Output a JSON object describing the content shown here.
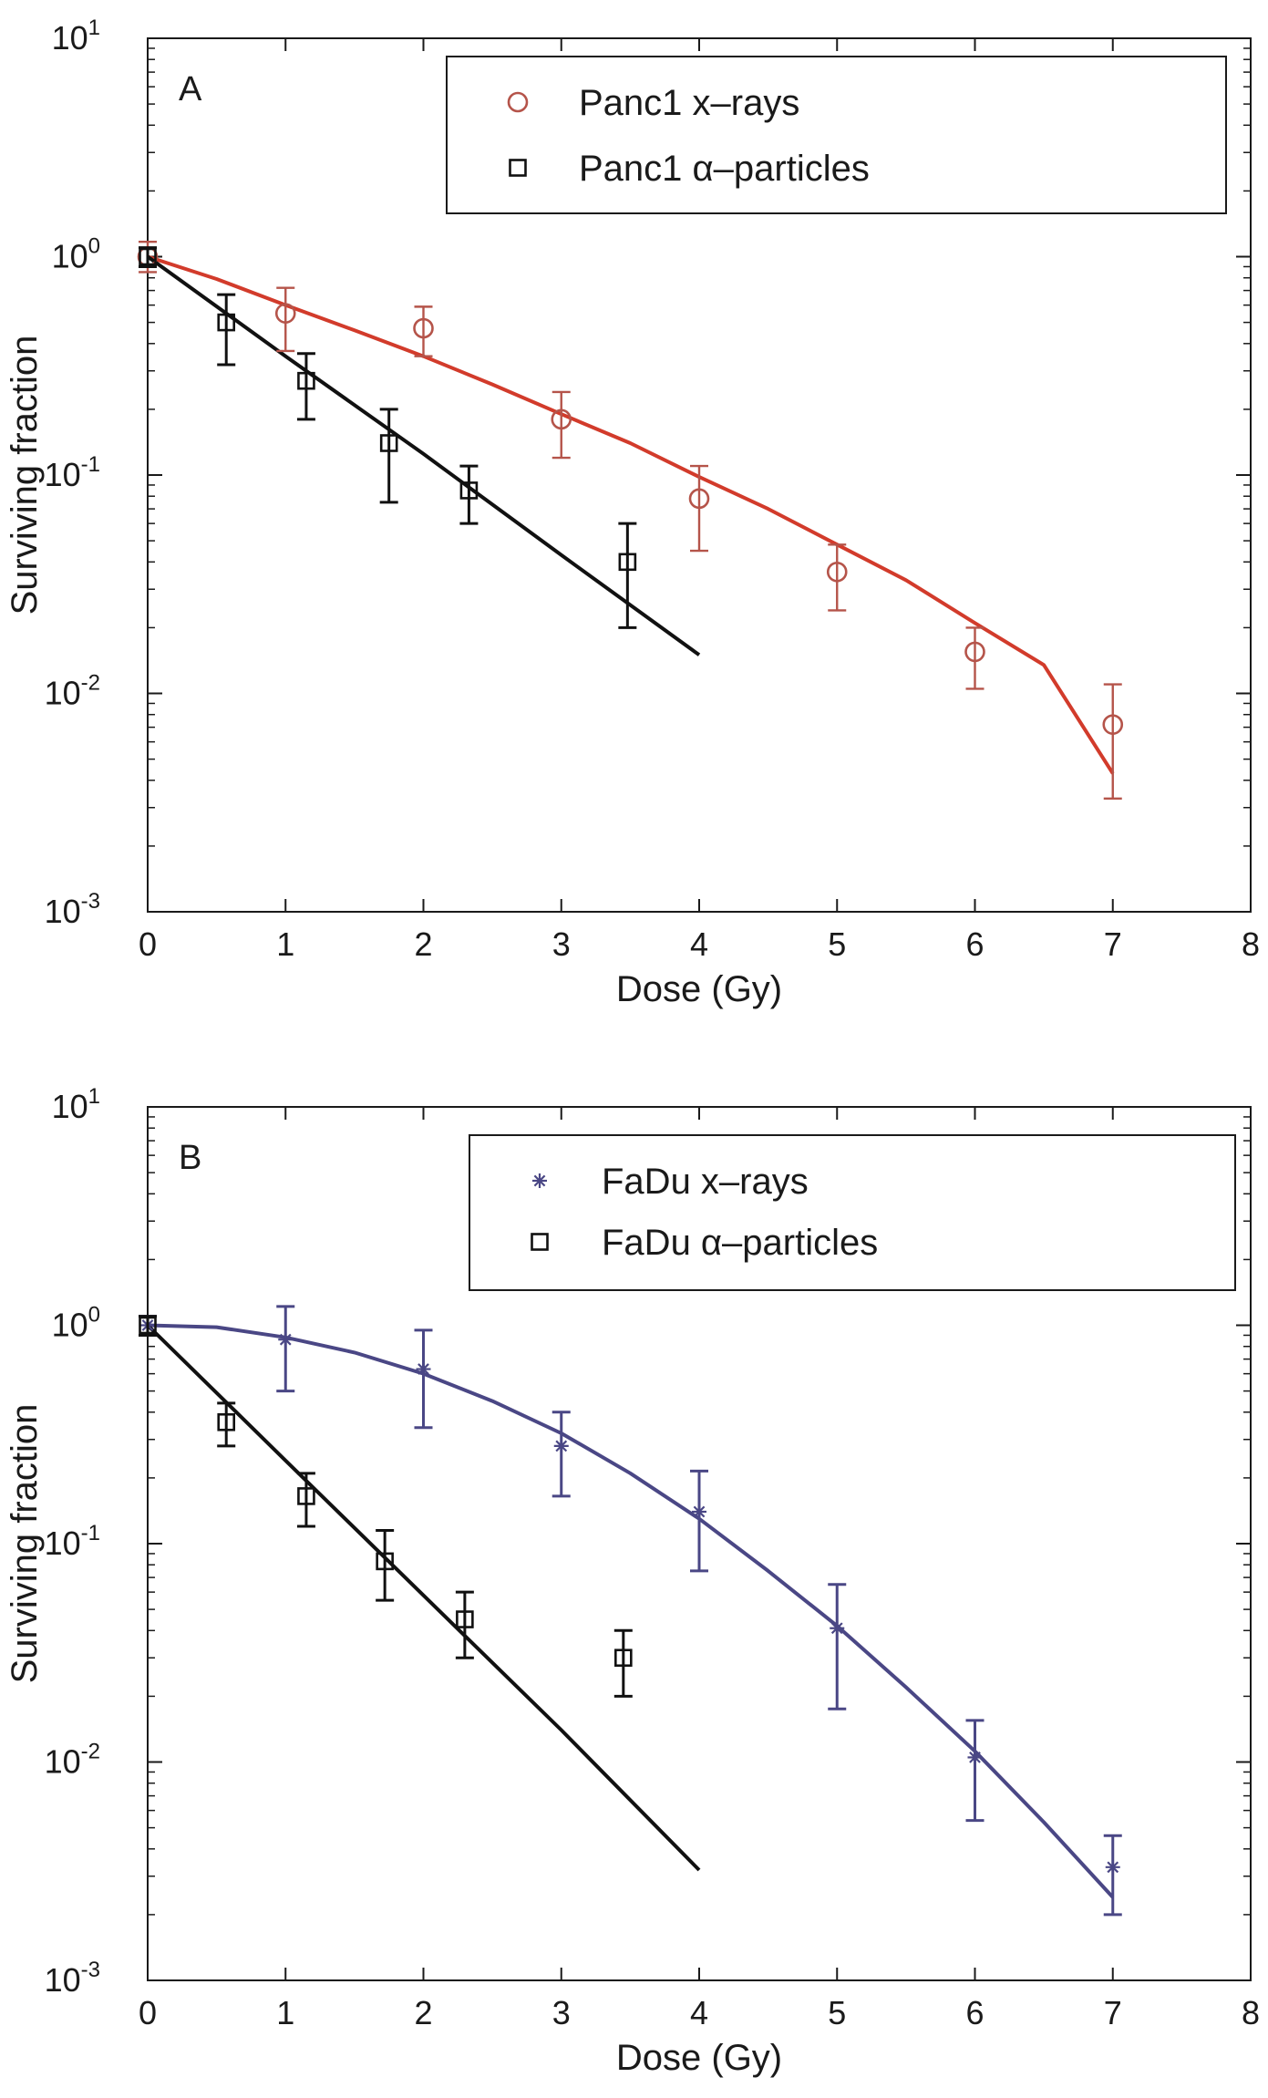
{
  "chart_data": [
    {
      "type": "scatter",
      "panel_label": "A",
      "xlabel": "Dose (Gy)",
      "ylabel": "Surviving fraction",
      "xlim": [
        0,
        8
      ],
      "ylim": [
        0.001,
        10
      ],
      "yscale": "log",
      "x_ticks": [
        "0",
        "1",
        "2",
        "3",
        "4",
        "5",
        "6",
        "7",
        "8"
      ],
      "y_ticks": [
        {
          "base": "10",
          "exp": "1",
          "value": 10
        },
        {
          "base": "10",
          "exp": "0",
          "value": 1
        },
        {
          "base": "10",
          "exp": "-1",
          "value": 0.1
        },
        {
          "base": "10",
          "exp": "-2",
          "value": 0.01
        },
        {
          "base": "10",
          "exp": "-3",
          "value": 0.001
        }
      ],
      "grid": false,
      "legend_position": "top-right",
      "series": [
        {
          "name": "Panc1 x–rays",
          "marker": "circle",
          "color": "#b5544a",
          "points": [
            {
              "x": 0,
              "y": 1.0,
              "lo": 0.85,
              "hi": 1.17
            },
            {
              "x": 1,
              "y": 0.55,
              "lo": 0.37,
              "hi": 0.72
            },
            {
              "x": 2,
              "y": 0.47,
              "lo": 0.35,
              "hi": 0.59
            },
            {
              "x": 3,
              "y": 0.18,
              "lo": 0.12,
              "hi": 0.24
            },
            {
              "x": 4,
              "y": 0.078,
              "lo": 0.045,
              "hi": 0.11
            },
            {
              "x": 5,
              "y": 0.036,
              "lo": 0.024,
              "hi": 0.048
            },
            {
              "x": 6,
              "y": 0.0155,
              "lo": 0.0105,
              "hi": 0.02
            },
            {
              "x": 7,
              "y": 0.0072,
              "lo": 0.0033,
              "hi": 0.011
            }
          ]
        },
        {
          "name": "Panc1 α–particles",
          "marker": "square",
          "color": "#111111",
          "points": [
            {
              "x": 0,
              "y": 1.0,
              "lo": 0.9,
              "hi": 1.1
            },
            {
              "x": 0.57,
              "y": 0.5,
              "lo": 0.32,
              "hi": 0.67
            },
            {
              "x": 1.15,
              "y": 0.27,
              "lo": 0.18,
              "hi": 0.36
            },
            {
              "x": 1.75,
              "y": 0.14,
              "lo": 0.075,
              "hi": 0.2
            },
            {
              "x": 2.33,
              "y": 0.085,
              "lo": 0.06,
              "hi": 0.11
            },
            {
              "x": 3.48,
              "y": 0.04,
              "lo": 0.02,
              "hi": 0.06
            }
          ]
        }
      ],
      "fits": [
        {
          "color": "#d23b2b",
          "points": [
            [
              0,
              1.0
            ],
            [
              0.5,
              0.79
            ],
            [
              1,
              0.6
            ],
            [
              1.5,
              0.46
            ],
            [
              2,
              0.35
            ],
            [
              2.5,
              0.26
            ],
            [
              3,
              0.19
            ],
            [
              3.5,
              0.14
            ],
            [
              4,
              0.098
            ],
            [
              4.5,
              0.07
            ],
            [
              5,
              0.048
            ],
            [
              5.5,
              0.033
            ],
            [
              6,
              0.021
            ],
            [
              6.5,
              0.0135
            ],
            [
              7,
              0.0043
            ]
          ]
        },
        {
          "color": "#111111",
          "points": [
            [
              0,
              1.0
            ],
            [
              1,
              0.35
            ],
            [
              2,
              0.125
            ],
            [
              3,
              0.043
            ],
            [
              4,
              0.015
            ]
          ]
        }
      ]
    },
    {
      "type": "scatter",
      "panel_label": "B",
      "xlabel": "Dose (Gy)",
      "ylabel": "Surviving fraction",
      "xlim": [
        0,
        8
      ],
      "ylim": [
        0.001,
        10
      ],
      "yscale": "log",
      "x_ticks": [
        "0",
        "1",
        "2",
        "3",
        "4",
        "5",
        "6",
        "7",
        "8"
      ],
      "y_ticks": [
        {
          "base": "10",
          "exp": "1",
          "value": 10
        },
        {
          "base": "10",
          "exp": "0",
          "value": 1
        },
        {
          "base": "10",
          "exp": "-1",
          "value": 0.1
        },
        {
          "base": "10",
          "exp": "-2",
          "value": 0.01
        },
        {
          "base": "10",
          "exp": "-3",
          "value": 0.001
        }
      ],
      "grid": false,
      "legend_position": "top-right",
      "series": [
        {
          "name": "FaDu x–rays",
          "marker": "asterisk",
          "color": "#4a4785",
          "points": [
            {
              "x": 0,
              "y": 1.0,
              "lo": 0.9,
              "hi": 1.1
            },
            {
              "x": 1,
              "y": 0.86,
              "lo": 0.5,
              "hi": 1.22
            },
            {
              "x": 2,
              "y": 0.63,
              "lo": 0.34,
              "hi": 0.95
            },
            {
              "x": 3,
              "y": 0.28,
              "lo": 0.165,
              "hi": 0.4
            },
            {
              "x": 4,
              "y": 0.14,
              "lo": 0.075,
              "hi": 0.215
            },
            {
              "x": 5,
              "y": 0.041,
              "lo": 0.0175,
              "hi": 0.065
            },
            {
              "x": 6,
              "y": 0.0105,
              "lo": 0.0054,
              "hi": 0.0155
            },
            {
              "x": 7,
              "y": 0.0033,
              "lo": 0.002,
              "hi": 0.0046
            }
          ]
        },
        {
          "name": "FaDu α–particles",
          "marker": "square",
          "color": "#111111",
          "points": [
            {
              "x": 0,
              "y": 1.0,
              "lo": 0.9,
              "hi": 1.1
            },
            {
              "x": 0.57,
              "y": 0.36,
              "lo": 0.28,
              "hi": 0.44
            },
            {
              "x": 1.15,
              "y": 0.165,
              "lo": 0.12,
              "hi": 0.21
            },
            {
              "x": 1.72,
              "y": 0.083,
              "lo": 0.055,
              "hi": 0.115
            },
            {
              "x": 2.3,
              "y": 0.045,
              "lo": 0.03,
              "hi": 0.06
            },
            {
              "x": 3.45,
              "y": 0.03,
              "lo": 0.02,
              "hi": 0.04
            }
          ]
        }
      ],
      "fits": [
        {
          "color": "#4a4785",
          "points": [
            [
              0,
              1.0
            ],
            [
              0.5,
              0.98
            ],
            [
              1,
              0.88
            ],
            [
              1.5,
              0.75
            ],
            [
              2,
              0.6
            ],
            [
              2.5,
              0.45
            ],
            [
              3,
              0.32
            ],
            [
              3.5,
              0.21
            ],
            [
              4,
              0.13
            ],
            [
              4.5,
              0.075
            ],
            [
              5,
              0.042
            ],
            [
              5.5,
              0.022
            ],
            [
              6,
              0.0112
            ],
            [
              6.5,
              0.0053
            ],
            [
              7,
              0.0024
            ]
          ]
        },
        {
          "color": "#111111",
          "points": [
            [
              0,
              1.0
            ],
            [
              1,
              0.24
            ],
            [
              2,
              0.058
            ],
            [
              3,
              0.014
            ],
            [
              4,
              0.0032
            ]
          ]
        }
      ]
    }
  ]
}
